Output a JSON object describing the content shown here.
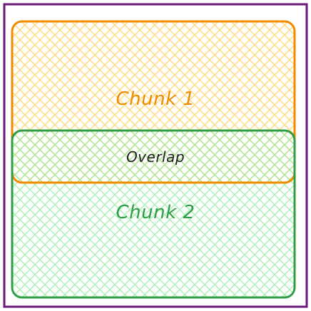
{
  "labels": {
    "chunk1": "Chunk 1",
    "overlap": "Overlap",
    "chunk2": "Chunk 2"
  },
  "colors": {
    "frame_stroke": "#6a1b7a",
    "chunk1_stroke": "#f08c00",
    "chunk1_hatch": "#ffd56b",
    "chunk2_stroke": "#2f9e44",
    "chunk2_hatch": "#8ce99a",
    "overlap_text": "#1e1e1e"
  }
}
